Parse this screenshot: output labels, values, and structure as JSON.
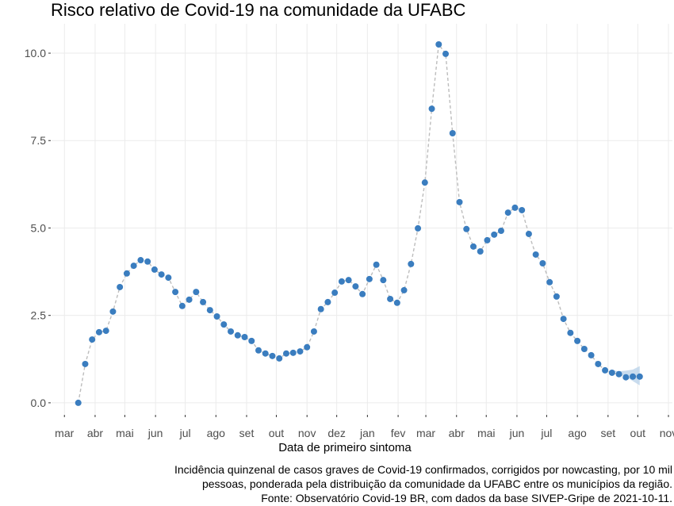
{
  "chart_data": {
    "type": "line",
    "title": "Risco relativo de Covid-19 na comunidade da UFABC",
    "xlabel": "Data de primeiro sintoma",
    "ylabel": "",
    "caption": [
      "Incidência quinzenal de casos graves de Covid-19 confirmados, corrigidos por nowcasting, por 10 mil",
      "pessoas, ponderada pela distribuição da comunidade da UFABC entre os municípios da região.",
      "Fonte: Observatório Covid-19 BR, com dados da base SIVEP-Gripe de 2021-10-11."
    ],
    "xlim": [
      "2020-02-17",
      "2021-11-05"
    ],
    "ylim": [
      -0.32,
      10.84
    ],
    "grid": true,
    "y_ticks": [
      {
        "value": 0,
        "label": "0.0"
      },
      {
        "value": 2.5,
        "label": "2.5"
      },
      {
        "value": 5,
        "label": "5.0"
      },
      {
        "value": 7.5,
        "label": "7.5"
      },
      {
        "value": 10,
        "label": "10.0"
      }
    ],
    "x_ticks": [
      {
        "date": "2020-03-01",
        "label": "mar"
      },
      {
        "date": "2020-04-01",
        "label": "abr"
      },
      {
        "date": "2020-05-01",
        "label": "mai"
      },
      {
        "date": "2020-06-01",
        "label": "jun"
      },
      {
        "date": "2020-07-01",
        "label": "jul"
      },
      {
        "date": "2020-08-01",
        "label": "ago"
      },
      {
        "date": "2020-09-01",
        "label": "set"
      },
      {
        "date": "2020-10-01",
        "label": "out"
      },
      {
        "date": "2020-11-01",
        "label": "nov"
      },
      {
        "date": "2020-12-01",
        "label": "dez"
      },
      {
        "date": "2021-01-01",
        "label": "jan"
      },
      {
        "date": "2021-02-01",
        "label": "fev"
      },
      {
        "date": "2021-03-01",
        "label": "mar"
      },
      {
        "date": "2021-04-01",
        "label": "abr"
      },
      {
        "date": "2021-05-01",
        "label": "mai"
      },
      {
        "date": "2021-06-01",
        "label": "jun"
      },
      {
        "date": "2021-07-01",
        "label": "jul"
      },
      {
        "date": "2021-08-01",
        "label": "ago"
      },
      {
        "date": "2021-09-01",
        "label": "set"
      },
      {
        "date": "2021-10-01",
        "label": "out"
      },
      {
        "date": "2021-11-01",
        "label": "nov"
      }
    ],
    "colors": {
      "points": "#3a7dbf",
      "line": "#bdbdbd",
      "ribbon": "#bcd3ea",
      "grid": "#ebebeb"
    },
    "x": [
      "2020-03-15",
      "2020-03-22",
      "2020-03-29",
      "2020-04-05",
      "2020-04-12",
      "2020-04-19",
      "2020-04-26",
      "2020-05-03",
      "2020-05-10",
      "2020-05-17",
      "2020-05-24",
      "2020-05-31",
      "2020-06-07",
      "2020-06-14",
      "2020-06-21",
      "2020-06-28",
      "2020-07-05",
      "2020-07-12",
      "2020-07-19",
      "2020-07-26",
      "2020-08-02",
      "2020-08-09",
      "2020-08-16",
      "2020-08-23",
      "2020-08-30",
      "2020-09-06",
      "2020-09-13",
      "2020-09-20",
      "2020-09-27",
      "2020-10-04",
      "2020-10-11",
      "2020-10-18",
      "2020-10-25",
      "2020-11-01",
      "2020-11-08",
      "2020-11-15",
      "2020-11-22",
      "2020-11-29",
      "2020-12-06",
      "2020-12-13",
      "2020-12-20",
      "2020-12-27",
      "2021-01-03",
      "2021-01-10",
      "2021-01-17",
      "2021-01-24",
      "2021-01-31",
      "2021-02-07",
      "2021-02-14",
      "2021-02-21",
      "2021-02-28",
      "2021-03-07",
      "2021-03-14",
      "2021-03-21",
      "2021-03-28",
      "2021-04-04",
      "2021-04-11",
      "2021-04-18",
      "2021-04-25",
      "2021-05-02",
      "2021-05-09",
      "2021-05-16",
      "2021-05-23",
      "2021-05-30",
      "2021-06-06",
      "2021-06-13",
      "2021-06-20",
      "2021-06-27",
      "2021-07-04",
      "2021-07-11",
      "2021-07-18",
      "2021-07-25",
      "2021-08-01",
      "2021-08-08",
      "2021-08-15",
      "2021-08-22",
      "2021-08-29",
      "2021-09-05",
      "2021-09-12",
      "2021-09-19",
      "2021-09-26",
      "2021-10-03"
    ],
    "y": [
      0.0,
      1.11,
      1.81,
      2.02,
      2.06,
      2.61,
      3.31,
      3.7,
      3.92,
      4.08,
      4.04,
      3.81,
      3.67,
      3.58,
      3.17,
      2.77,
      2.95,
      3.17,
      2.88,
      2.65,
      2.47,
      2.24,
      2.04,
      1.93,
      1.88,
      1.77,
      1.5,
      1.41,
      1.34,
      1.27,
      1.41,
      1.43,
      1.47,
      1.59,
      2.04,
      2.68,
      2.88,
      3.15,
      3.47,
      3.51,
      3.33,
      3.11,
      3.54,
      3.95,
      3.51,
      2.97,
      2.86,
      3.22,
      3.97,
      4.99,
      6.3,
      8.41,
      10.25,
      9.98,
      7.71,
      5.74,
      4.97,
      4.47,
      4.33,
      4.65,
      4.81,
      4.92,
      5.44,
      5.58,
      5.51,
      4.83,
      4.24,
      3.99,
      3.45,
      3.04,
      2.4,
      2.0,
      1.77,
      1.54,
      1.36,
      1.11,
      0.93,
      0.86,
      0.82,
      0.73,
      0.75,
      0.75
    ],
    "ribbon": {
      "x": [
        "2021-09-05",
        "2021-09-12",
        "2021-09-19",
        "2021-09-26",
        "2021-10-03"
      ],
      "lower": [
        0.93,
        0.83,
        0.75,
        0.62,
        0.5
      ],
      "upper": [
        0.93,
        0.9,
        0.92,
        0.95,
        1.05
      ]
    }
  }
}
